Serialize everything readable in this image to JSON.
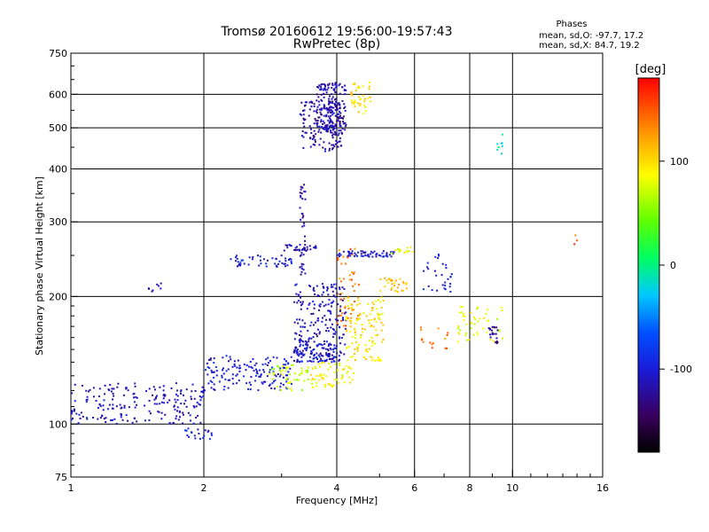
{
  "chart_data": {
    "type": "scatter",
    "title": "Tromsø 20160612 19:56:00-19:57:43",
    "subtitle": "RwPretec (8p)",
    "xlabel": "Frequency [MHz]",
    "ylabel": "Stationary phase Virtual Height [km]",
    "xscale": "log",
    "yscale": "log",
    "xlim": [
      1,
      16
    ],
    "ylim": [
      75,
      750
    ],
    "xticks": [
      1,
      2,
      4,
      6,
      8,
      10,
      16
    ],
    "yticks": [
      75,
      100,
      200,
      300,
      400,
      500,
      600,
      750
    ],
    "grid_x": [
      2,
      4,
      6,
      8,
      10
    ],
    "grid_y": [
      100,
      200,
      300,
      400,
      500,
      600
    ],
    "legend": {
      "title": "Phases",
      "line1": "mean, sd,O: -97.7, 17.2",
      "line2": "mean, sd,X:  84.7, 19.2"
    },
    "colorbar": {
      "label": "[deg]",
      "min": -180,
      "max": 180,
      "ticks": [
        100,
        0,
        -100
      ]
    },
    "clusters": [
      {
        "x0": 1.0,
        "x1": 2.0,
        "y0": 100,
        "y1": 125,
        "phase": -110,
        "n": 200
      },
      {
        "x0": 2.0,
        "x1": 3.2,
        "y0": 120,
        "y1": 145,
        "phase": -100,
        "n": 150
      },
      {
        "x0": 3.2,
        "x1": 4.0,
        "y0": 140,
        "y1": 155,
        "phase": -100,
        "n": 90
      },
      {
        "x0": 2.8,
        "x1": 3.6,
        "y0": 120,
        "y1": 138,
        "phase": 70,
        "n": 50
      },
      {
        "x0": 3.2,
        "x1": 4.2,
        "y0": 140,
        "y1": 215,
        "phase": -110,
        "n": 220
      },
      {
        "x0": 3.3,
        "x1": 3.4,
        "y0": 225,
        "y1": 370,
        "phase": -120,
        "n": 40
      },
      {
        "x0": 3.3,
        "x1": 4.1,
        "y0": 440,
        "y1": 580,
        "phase": -120,
        "n": 140
      },
      {
        "x0": 3.6,
        "x1": 4.2,
        "y0": 480,
        "y1": 640,
        "phase": -115,
        "n": 170
      },
      {
        "x0": 4.3,
        "x1": 4.8,
        "y0": 540,
        "y1": 640,
        "phase": 95,
        "n": 40
      },
      {
        "x0": 2.3,
        "x1": 3.2,
        "y0": 235,
        "y1": 250,
        "phase": -100,
        "n": 50
      },
      {
        "x0": 3.0,
        "x1": 3.6,
        "y0": 255,
        "y1": 265,
        "phase": -115,
        "n": 30
      },
      {
        "x0": 4.0,
        "x1": 5.4,
        "y0": 248,
        "y1": 256,
        "phase": -105,
        "n": 60
      },
      {
        "x0": 5.3,
        "x1": 6.0,
        "y0": 252,
        "y1": 262,
        "phase": 80,
        "n": 15
      },
      {
        "x0": 4.0,
        "x1": 4.5,
        "y0": 170,
        "y1": 260,
        "phase": 140,
        "n": 50
      },
      {
        "x0": 4.2,
        "x1": 5.1,
        "y0": 140,
        "y1": 200,
        "phase": 95,
        "n": 120
      },
      {
        "x0": 3.5,
        "x1": 4.4,
        "y0": 122,
        "y1": 140,
        "phase": 90,
        "n": 60
      },
      {
        "x0": 5.0,
        "x1": 5.8,
        "y0": 205,
        "y1": 222,
        "phase": 110,
        "n": 30
      },
      {
        "x0": 6.2,
        "x1": 7.3,
        "y0": 205,
        "y1": 255,
        "phase": -100,
        "n": 30
      },
      {
        "x0": 6.2,
        "x1": 7.2,
        "y0": 150,
        "y1": 170,
        "phase": 140,
        "n": 15
      },
      {
        "x0": 7.5,
        "x1": 9.5,
        "y0": 155,
        "y1": 190,
        "phase": 80,
        "n": 50
      },
      {
        "x0": 8.8,
        "x1": 9.3,
        "y0": 155,
        "y1": 170,
        "phase": -130,
        "n": 20
      },
      {
        "x0": 1.8,
        "x1": 2.1,
        "y0": 92,
        "y1": 98,
        "phase": -100,
        "n": 20
      },
      {
        "x0": 1.5,
        "x1": 1.62,
        "y0": 205,
        "y1": 220,
        "phase": -120,
        "n": 8
      },
      {
        "x0": 9.2,
        "x1": 9.6,
        "y0": 420,
        "y1": 500,
        "phase": -20,
        "n": 8
      },
      {
        "x0": 13.8,
        "x1": 14.2,
        "y0": 250,
        "y1": 280,
        "phase": 150,
        "n": 3
      }
    ]
  }
}
